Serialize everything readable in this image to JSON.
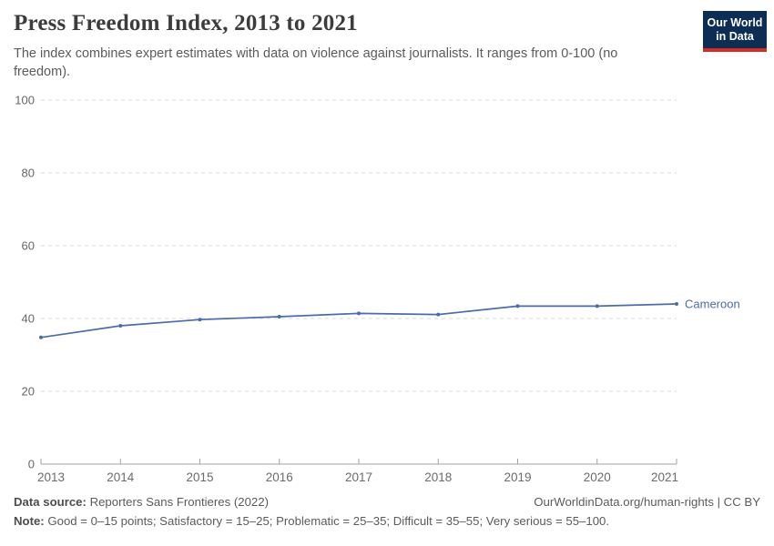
{
  "header": {
    "title": "Press Freedom Index, 2013 to 2021",
    "subtitle": "The index combines expert estimates with data on violence against journalists. It ranges from 0-100 (no freedom)."
  },
  "logo": {
    "line1": "Our World",
    "line2": "in Data",
    "bg_color": "#0d2e54",
    "bar_color": "#d12d23"
  },
  "chart_data": {
    "type": "line",
    "title": "Press Freedom Index, 2013 to 2021",
    "x": [
      2013,
      2014,
      2015,
      2016,
      2017,
      2018,
      2019,
      2020,
      2021
    ],
    "series": [
      {
        "name": "Cameroon",
        "values": [
          34.8,
          38.0,
          39.7,
          40.5,
          41.4,
          41.1,
          43.4,
          43.4,
          44.0
        ]
      }
    ],
    "xlabel": "",
    "ylabel": "",
    "ylim": [
      0,
      100
    ],
    "yticks": [
      0,
      20,
      40,
      60,
      80,
      100
    ],
    "grid": "dashed horizontal",
    "legend_position": "right-of-line-end",
    "line_color": "#4c6ca9",
    "grid_color": "#dbdbdb",
    "axis_color": "#a3a3a3"
  },
  "footer": {
    "data_source_label": "Data source:",
    "data_source": "Reporters Sans Frontieres (2022)",
    "rights": "OurWorldinData.org/human-rights | CC BY",
    "note_label": "Note:",
    "note": "Good = 0–15 points; Satisfactory = 15–25; Problematic = 25–35; Difficult = 35–55; Very serious = 55–100."
  }
}
